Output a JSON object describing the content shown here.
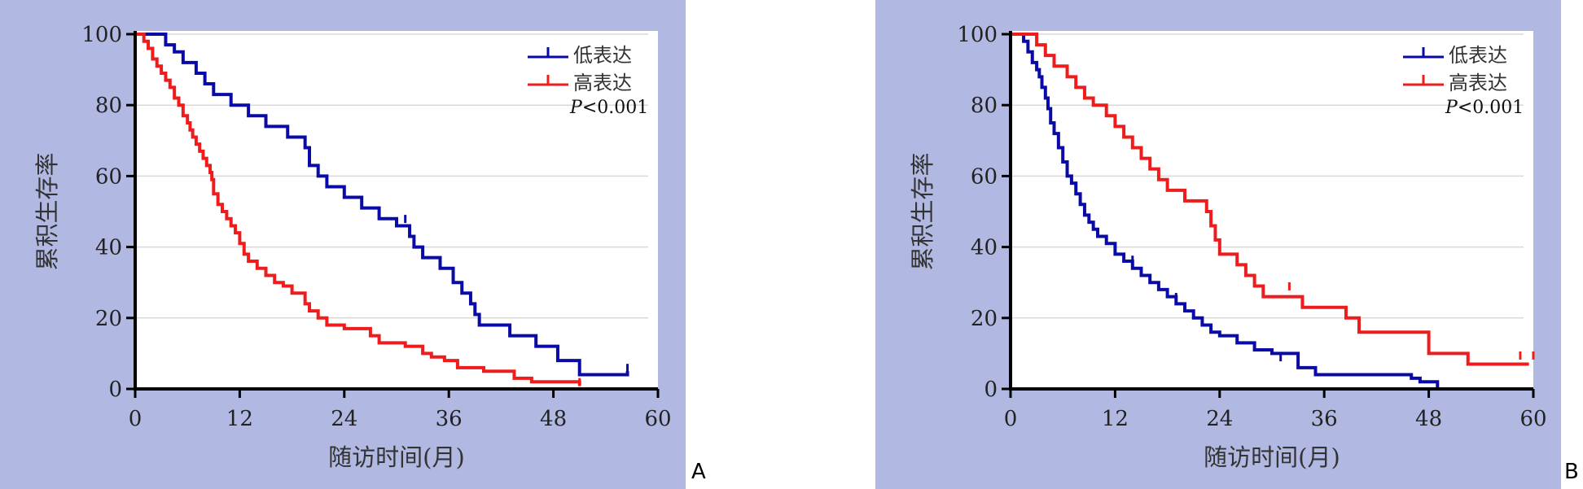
{
  "colors": {
    "panel_bg": "#b1b9e2",
    "plot_bg": "#ffffff",
    "low": "#0a0aa6",
    "high": "#ee1c1c",
    "grid": "#d9d9d9"
  },
  "labels": {
    "panel_a": "A",
    "panel_b": "B"
  },
  "chart_data": [
    {
      "type": "line",
      "step": true,
      "title": "",
      "xlabel": "随访时间(月)",
      "ylabel": "累积生存率",
      "xlim": [
        0,
        60
      ],
      "ylim": [
        0,
        100
      ],
      "xticks": [
        0,
        12,
        24,
        36,
        48,
        60
      ],
      "yticks": [
        0,
        20,
        40,
        60,
        80,
        100
      ],
      "grid": "horizontal",
      "legend_position": "top-right",
      "p_value": "<0.001",
      "series": [
        {
          "name": "低表达",
          "color": "#0a0aa6",
          "x": [
            0,
            3.5,
            4.5,
            5.5,
            7,
            8,
            9,
            11,
            13,
            15,
            17.5,
            19.5,
            20,
            21,
            22,
            24,
            26,
            28,
            30,
            31.5,
            32,
            33,
            35,
            36.5,
            37.5,
            38.5,
            39,
            39.5,
            43,
            46,
            48.5,
            51,
            56.5
          ],
          "y": [
            100,
            97,
            95,
            92,
            89,
            86,
            83,
            80,
            77,
            74,
            71,
            68,
            63,
            60,
            57,
            54,
            51,
            48,
            46,
            43,
            40,
            37,
            34,
            30,
            27,
            24,
            21,
            18,
            15,
            12,
            8,
            4,
            5
          ],
          "censors": [
            [
              31,
              47
            ],
            [
              46,
              13
            ],
            [
              56.5,
              5
            ]
          ]
        },
        {
          "name": "高表达",
          "color": "#ee1c1c",
          "x": [
            0,
            1,
            1.5,
            2,
            2.5,
            3,
            3.5,
            4,
            4.5,
            5,
            5.5,
            6,
            6.3,
            6.6,
            7,
            7.4,
            7.8,
            8.2,
            8.6,
            8.8,
            9,
            9.5,
            10,
            10.5,
            11,
            11.5,
            12,
            12.5,
            13,
            14,
            15,
            16,
            17,
            18,
            19.5,
            20,
            21,
            22,
            24,
            27,
            28,
            31,
            33,
            34,
            35.5,
            37,
            40,
            43.5,
            45.5,
            51
          ],
          "y": [
            100,
            98,
            96,
            93,
            91,
            89,
            87,
            85,
            82,
            80,
            77,
            75,
            73,
            71,
            69,
            67,
            65,
            63,
            61,
            59,
            55,
            52,
            50,
            48,
            46,
            44,
            41,
            38,
            36,
            34,
            32,
            30,
            29,
            27,
            24,
            22,
            20,
            18,
            17,
            15,
            13,
            12,
            10,
            9,
            8,
            6,
            5,
            3,
            2,
            1
          ],
          "censors": [
            [
              51,
              1
            ]
          ]
        }
      ]
    },
    {
      "type": "line",
      "step": true,
      "title": "",
      "xlabel": "随访时间(月)",
      "ylabel": "累积生存率",
      "xlim": [
        0,
        60
      ],
      "ylim": [
        0,
        100
      ],
      "xticks": [
        0,
        12,
        24,
        36,
        48,
        60
      ],
      "yticks": [
        0,
        20,
        40,
        60,
        80,
        100
      ],
      "grid": "horizontal",
      "legend_position": "top-right",
      "p_value": "<0.001",
      "series": [
        {
          "name": "低表达",
          "color": "#0a0aa6",
          "x": [
            0,
            1.5,
            2,
            2.5,
            3,
            3.3,
            3.6,
            4,
            4.3,
            4.6,
            5,
            5.5,
            6,
            6.5,
            7,
            7.5,
            8,
            8.5,
            9,
            9.5,
            10,
            11,
            12,
            13,
            14,
            15,
            16,
            17,
            18,
            19,
            20,
            21,
            22,
            23,
            24,
            26,
            28,
            30,
            33,
            35,
            40,
            46,
            47,
            49
          ],
          "y": [
            100,
            98,
            95,
            92,
            90,
            88,
            85,
            82,
            79,
            75,
            72,
            68,
            64,
            60,
            58,
            55,
            52,
            49,
            47,
            45,
            43,
            41,
            38,
            36,
            34,
            32,
            30,
            28,
            26,
            24,
            22,
            20,
            18,
            16,
            15,
            13,
            11,
            10,
            6,
            4,
            4,
            3,
            2,
            0
          ],
          "censors": [
            [
              14,
              35.5
            ],
            [
              19,
              25
            ],
            [
              31,
              8
            ]
          ]
        },
        {
          "name": "高表达",
          "color": "#ee1c1c",
          "x": [
            0,
            3,
            4,
            5,
            6.5,
            7.5,
            8.5,
            9.5,
            11,
            12,
            13,
            14,
            15,
            16,
            17,
            18,
            20,
            22.5,
            23,
            23.5,
            24,
            26,
            27,
            28,
            29,
            31,
            33.5,
            36,
            38.5,
            40,
            46,
            48,
            52.5,
            59.5
          ],
          "y": [
            100,
            97,
            94,
            91,
            88,
            85,
            82,
            80,
            77,
            74,
            71,
            68,
            65,
            62,
            59,
            56,
            53,
            50,
            46,
            42,
            38,
            35,
            32,
            29,
            26,
            26,
            23,
            23,
            20,
            16,
            16,
            10,
            7,
            7
          ],
          "censors": [
            [
              32,
              28
            ],
            [
              58.5,
              8.5
            ],
            [
              60,
              8.5
            ]
          ]
        }
      ]
    }
  ]
}
